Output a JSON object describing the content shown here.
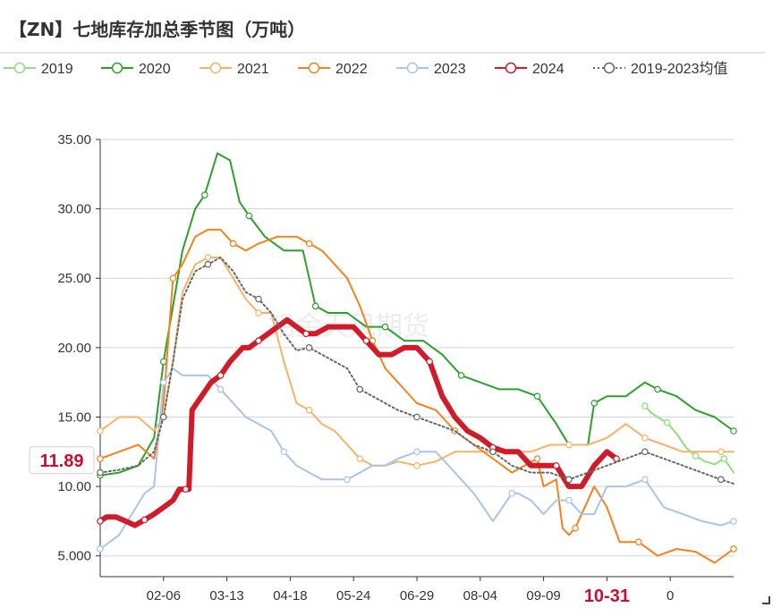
{
  "chart_data": {
    "type": "line",
    "title": "【ZN】七地库存加总季节图（万吨）",
    "watermark": "铝金天风期货",
    "ylim": [
      3.5,
      35
    ],
    "y_ticks": [
      "5.000",
      "10.00",
      "15.00",
      "20.00",
      "25.00",
      "30.00",
      "35.00"
    ],
    "y_tick_values": [
      5,
      10,
      15,
      20,
      25,
      30,
      35
    ],
    "x_tick_labels": [
      "02-06",
      "03-13",
      "04-18",
      "05-24",
      "06-29",
      "08-04",
      "09-09",
      "10-31",
      "0"
    ],
    "x_tick_positions": [
      0.1,
      0.2,
      0.3,
      0.4,
      0.5,
      0.6,
      0.7,
      0.8,
      0.9
    ],
    "grid": true,
    "legend_position": "top",
    "highlight_x_label": "10-31",
    "highlight_y_label": "11.89",
    "highlight_y_value": 11.89,
    "series": [
      {
        "name": "2019",
        "color": "#90dc81",
        "width": 2,
        "dash": "",
        "x": [
          0.86,
          0.87,
          0.88,
          0.895,
          0.91,
          0.925,
          0.94,
          0.955,
          0.97,
          0.985,
          1.0
        ],
        "y": [
          15.8,
          15.3,
          15.0,
          14.6,
          13.8,
          12.8,
          12.2,
          11.8,
          11.6,
          12.0,
          11.0
        ]
      },
      {
        "name": "2020",
        "color": "#2ca02c",
        "width": 2,
        "dash": "",
        "x": [
          0.0,
          0.03,
          0.06,
          0.085,
          0.1,
          0.115,
          0.13,
          0.15,
          0.165,
          0.185,
          0.205,
          0.22,
          0.235,
          0.26,
          0.29,
          0.32,
          0.34,
          0.36,
          0.39,
          0.42,
          0.45,
          0.48,
          0.51,
          0.54,
          0.57,
          0.6,
          0.63,
          0.66,
          0.69,
          0.72,
          0.74,
          0.77,
          0.78,
          0.8,
          0.83,
          0.86,
          0.88,
          0.91,
          0.94,
          0.97,
          1.0
        ],
        "y": [
          10.8,
          11.0,
          11.5,
          13.5,
          19.0,
          23.0,
          27.0,
          30.0,
          31.0,
          34.0,
          33.5,
          30.5,
          29.5,
          28.0,
          27.0,
          27.0,
          23.0,
          22.5,
          22.5,
          21.5,
          21.5,
          20.5,
          20.5,
          19.5,
          18.0,
          17.5,
          17.0,
          17.0,
          16.5,
          14.5,
          13.0,
          13.0,
          16.0,
          16.5,
          16.5,
          17.5,
          17.0,
          16.5,
          15.5,
          15.0,
          14.0
        ]
      },
      {
        "name": "2021",
        "color": "#f6b26b",
        "width": 2,
        "dash": "",
        "x": [
          0.0,
          0.03,
          0.06,
          0.085,
          0.1,
          0.115,
          0.13,
          0.15,
          0.17,
          0.19,
          0.21,
          0.23,
          0.25,
          0.27,
          0.29,
          0.31,
          0.33,
          0.35,
          0.37,
          0.39,
          0.41,
          0.43,
          0.45,
          0.47,
          0.5,
          0.53,
          0.56,
          0.59,
          0.62,
          0.65,
          0.68,
          0.71,
          0.74,
          0.77,
          0.8,
          0.83,
          0.86,
          0.89,
          0.92,
          0.95,
          0.98,
          1.0
        ],
        "y": [
          14.0,
          15.0,
          15.0,
          14.0,
          15.0,
          19.0,
          24.0,
          26.0,
          26.5,
          26.5,
          25.0,
          23.5,
          22.5,
          22.5,
          19.0,
          16.0,
          15.5,
          14.5,
          14.0,
          13.0,
          12.0,
          11.5,
          11.5,
          11.8,
          11.5,
          11.8,
          12.5,
          12.5,
          12.5,
          12.5,
          12.5,
          13.0,
          13.0,
          13.0,
          13.5,
          14.5,
          13.5,
          13.0,
          12.5,
          12.5,
          12.5,
          12.5
        ]
      },
      {
        "name": "2022",
        "color": "#f5821f",
        "width": 2,
        "dash": "",
        "x": [
          0.0,
          0.03,
          0.06,
          0.085,
          0.1,
          0.115,
          0.13,
          0.15,
          0.17,
          0.19,
          0.21,
          0.23,
          0.25,
          0.28,
          0.31,
          0.33,
          0.35,
          0.37,
          0.39,
          0.41,
          0.43,
          0.45,
          0.47,
          0.5,
          0.53,
          0.56,
          0.59,
          0.62,
          0.65,
          0.67,
          0.69,
          0.7,
          0.72,
          0.73,
          0.74,
          0.75,
          0.76,
          0.78,
          0.8,
          0.82,
          0.85,
          0.88,
          0.91,
          0.94,
          0.97,
          1.0
        ],
        "y": [
          12.0,
          12.5,
          13.0,
          12.0,
          16.0,
          25.0,
          26.0,
          28.0,
          28.5,
          28.5,
          27.5,
          27.0,
          27.5,
          28.0,
          28.0,
          27.5,
          27.0,
          26.0,
          25.0,
          23.0,
          20.5,
          18.5,
          17.5,
          16.0,
          15.5,
          14.0,
          13.0,
          12.0,
          11.0,
          11.5,
          12.0,
          10.0,
          10.5,
          7.0,
          6.5,
          7.0,
          8.0,
          10.0,
          8.5,
          6.0,
          6.0,
          5.0,
          5.5,
          5.3,
          4.5,
          5.5
        ]
      },
      {
        "name": "2023",
        "color": "#a9c4e6",
        "width": 2,
        "dash": "",
        "x": [
          0.0,
          0.03,
          0.05,
          0.07,
          0.085,
          0.1,
          0.115,
          0.13,
          0.15,
          0.17,
          0.19,
          0.21,
          0.23,
          0.25,
          0.27,
          0.29,
          0.31,
          0.33,
          0.35,
          0.37,
          0.39,
          0.41,
          0.43,
          0.45,
          0.47,
          0.5,
          0.53,
          0.56,
          0.59,
          0.62,
          0.65,
          0.66,
          0.68,
          0.7,
          0.72,
          0.74,
          0.76,
          0.78,
          0.8,
          0.83,
          0.86,
          0.89,
          0.92,
          0.95,
          0.98,
          1.0
        ],
        "y": [
          5.5,
          6.5,
          8.0,
          9.5,
          10.0,
          17.5,
          18.5,
          18.0,
          18.0,
          18.0,
          17.0,
          16.0,
          15.0,
          14.5,
          14.0,
          12.5,
          11.5,
          11.0,
          10.5,
          10.5,
          10.5,
          11.0,
          11.5,
          11.5,
          12.0,
          12.5,
          12.5,
          11.0,
          9.5,
          7.5,
          9.5,
          9.5,
          9.0,
          8.0,
          9.0,
          9.0,
          8.0,
          8.0,
          10.0,
          10.0,
          10.5,
          8.5,
          8.0,
          7.5,
          7.2,
          7.5
        ]
      },
      {
        "name": "2024",
        "color": "#d01c2a",
        "width": 6,
        "dash": "",
        "x": [
          0.0,
          0.01,
          0.025,
          0.04,
          0.055,
          0.07,
          0.085,
          0.1,
          0.115,
          0.125,
          0.135,
          0.14,
          0.145,
          0.16,
          0.175,
          0.19,
          0.205,
          0.215,
          0.225,
          0.235,
          0.25,
          0.265,
          0.28,
          0.295,
          0.31,
          0.325,
          0.34,
          0.36,
          0.38,
          0.4,
          0.42,
          0.44,
          0.46,
          0.48,
          0.5,
          0.52,
          0.54,
          0.56,
          0.58,
          0.6,
          0.62,
          0.64,
          0.66,
          0.68,
          0.7,
          0.72,
          0.74,
          0.76,
          0.78,
          0.8,
          0.815
        ],
        "y": [
          7.5,
          7.8,
          7.8,
          7.5,
          7.2,
          7.6,
          8.0,
          8.5,
          9.0,
          9.8,
          9.8,
          9.8,
          15.5,
          16.5,
          17.5,
          18.0,
          19.0,
          19.5,
          20.0,
          20.0,
          20.5,
          21.0,
          21.5,
          22.0,
          21.5,
          21.0,
          21.0,
          21.5,
          21.5,
          21.5,
          20.5,
          19.5,
          19.5,
          20.0,
          20.0,
          19.0,
          16.5,
          15.0,
          14.0,
          13.5,
          12.8,
          12.5,
          12.5,
          11.5,
          11.5,
          11.5,
          10.0,
          10.0,
          11.5,
          12.5,
          12.0
        ]
      },
      {
        "name": "2019-2023均值",
        "color": "#666666",
        "width": 2,
        "dash": "2,3",
        "x": [
          0.0,
          0.03,
          0.06,
          0.085,
          0.1,
          0.115,
          0.13,
          0.15,
          0.17,
          0.19,
          0.21,
          0.23,
          0.25,
          0.27,
          0.29,
          0.31,
          0.33,
          0.35,
          0.37,
          0.39,
          0.41,
          0.43,
          0.45,
          0.47,
          0.5,
          0.53,
          0.56,
          0.59,
          0.62,
          0.65,
          0.68,
          0.71,
          0.74,
          0.77,
          0.8,
          0.83,
          0.86,
          0.89,
          0.92,
          0.95,
          0.98,
          1.0
        ],
        "y": [
          11.0,
          11.2,
          11.5,
          12.5,
          15.0,
          19.0,
          23.5,
          25.5,
          26.0,
          26.5,
          25.5,
          24.0,
          23.5,
          22.5,
          21.0,
          19.8,
          20.0,
          19.5,
          19.0,
          18.5,
          17.0,
          16.5,
          16.0,
          15.5,
          15.0,
          14.5,
          14.0,
          13.0,
          12.5,
          11.5,
          11.0,
          11.0,
          10.5,
          11.0,
          11.5,
          12.0,
          12.5,
          12.0,
          11.5,
          11.0,
          10.5,
          10.2
        ]
      }
    ]
  }
}
